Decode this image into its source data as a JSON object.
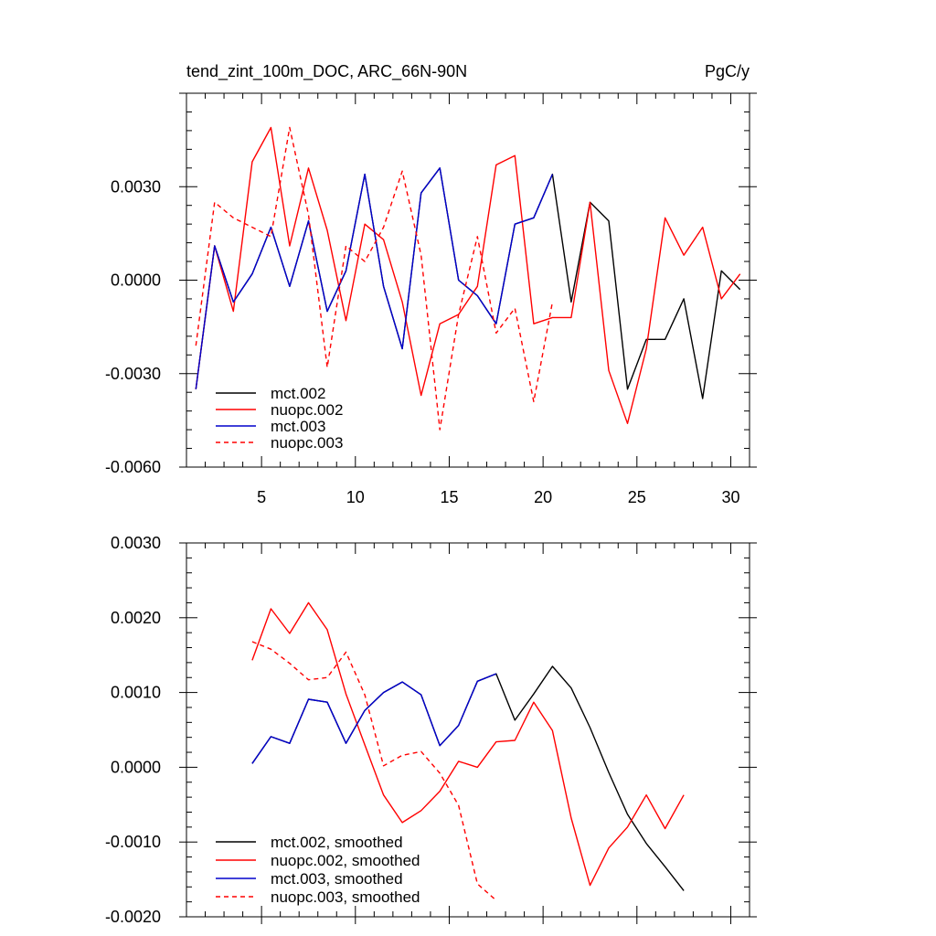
{
  "title_left": "tend_zint_100m_DOC, ARC_66N-90N",
  "title_right": "PgC/y",
  "chart_data": [
    {
      "type": "line",
      "title": "tend_zint_100m_DOC, ARC_66N-90N",
      "units": "PgC/y",
      "xlim": [
        1,
        31
      ],
      "ylim": [
        -0.006,
        0.006
      ],
      "x_ticks": [
        5,
        10,
        15,
        20,
        25,
        30
      ],
      "x_tick_labels": [
        "5",
        "10",
        "15",
        "20",
        "25",
        "30"
      ],
      "y_ticks": [
        -0.006,
        -0.003,
        0.0,
        0.003
      ],
      "y_tick_labels": [
        "-0.0060",
        "-0.0030",
        "0.0000",
        "0.0030"
      ],
      "legend_position": "bottom-left",
      "series": [
        {
          "name": "mct.002",
          "color": "#000000",
          "dash": "solid",
          "x": [
            1.5,
            2.5,
            3.5,
            4.5,
            5.5,
            6.5,
            7.5,
            8.5,
            9.5,
            10.5,
            11.5,
            12.5,
            13.5,
            14.5,
            15.5,
            16.5,
            17.5,
            18.5,
            19.5,
            20.5,
            21.5,
            22.5,
            23.5,
            24.5,
            25.5,
            26.5,
            27.5,
            28.5,
            29.5,
            30.5
          ],
          "values": [
            -0.0035,
            0.0011,
            -0.0007,
            0.0002,
            0.0017,
            -0.0002,
            0.0019,
            -0.001,
            0.0003,
            0.0034,
            -0.0002,
            -0.0022,
            0.0028,
            0.0036,
            0.0,
            -0.0005,
            -0.0014,
            0.0018,
            0.002,
            0.0034,
            -0.0007,
            0.0025,
            0.0019,
            -0.0035,
            -0.0019,
            -0.0019,
            -0.0006,
            -0.0038,
            0.0003,
            -0.0003
          ]
        },
        {
          "name": "nuopc.002",
          "color": "#ff0000",
          "dash": "solid",
          "x": [
            1.5,
            2.5,
            3.5,
            4.5,
            5.5,
            6.5,
            7.5,
            8.5,
            9.5,
            10.5,
            11.5,
            12.5,
            13.5,
            14.5,
            15.5,
            16.5,
            17.5,
            18.5,
            19.5,
            20.5,
            21.5,
            22.5,
            23.5,
            24.5,
            25.5,
            26.5,
            27.5,
            28.5,
            29.5,
            30.5
          ],
          "values": [
            -0.0035,
            0.0011,
            -0.001,
            0.0038,
            0.0049,
            0.0011,
            0.0036,
            0.0016,
            -0.0013,
            0.0018,
            0.0013,
            -0.0007,
            -0.0037,
            -0.0014,
            -0.0011,
            -0.0002,
            0.0037,
            0.004,
            -0.0014,
            -0.0012,
            -0.0012,
            0.0025,
            -0.0029,
            -0.0046,
            -0.0022,
            0.002,
            0.0008,
            0.0017,
            -0.0006,
            0.0002
          ]
        },
        {
          "name": "mct.003",
          "color": "#0000cc",
          "dash": "solid",
          "x": [
            1.5,
            2.5,
            3.5,
            4.5,
            5.5,
            6.5,
            7.5,
            8.5,
            9.5,
            10.5,
            11.5,
            12.5,
            13.5,
            14.5,
            15.5,
            16.5,
            17.5,
            18.5,
            19.5,
            20.5
          ],
          "values": [
            -0.0035,
            0.0011,
            -0.0007,
            0.0002,
            0.0017,
            -0.0002,
            0.0019,
            -0.001,
            0.0003,
            0.0034,
            -0.0002,
            -0.0022,
            0.0028,
            0.0036,
            0.0,
            -0.0005,
            -0.0014,
            0.0018,
            0.002,
            0.0034
          ]
        },
        {
          "name": "nuopc.003",
          "color": "#ff0000",
          "dash": "dashed",
          "x": [
            1.5,
            2.5,
            3.5,
            4.5,
            5.5,
            6.5,
            7.5,
            8.5,
            9.5,
            10.5,
            11.5,
            12.5,
            13.5,
            14.5,
            15.5,
            16.5,
            17.5,
            18.5,
            19.5,
            20.5
          ],
          "values": [
            -0.0021,
            0.0025,
            0.002,
            0.0017,
            0.0014,
            0.0049,
            0.0021,
            -0.0028,
            0.0011,
            0.0006,
            0.0017,
            0.0035,
            0.0008,
            -0.0048,
            -0.0011,
            0.0014,
            -0.0017,
            -0.0009,
            -0.0039,
            -0.0007
          ]
        }
      ]
    },
    {
      "type": "line",
      "xlim": [
        1,
        31
      ],
      "ylim": [
        -0.002,
        0.003
      ],
      "y_ticks": [
        -0.002,
        -0.001,
        0.0,
        0.001,
        0.002,
        0.003
      ],
      "y_tick_labels": [
        "-0.0020",
        "-0.0010",
        "0.0000",
        "0.0010",
        "0.0020",
        "0.0030"
      ],
      "legend_position": "bottom-left",
      "series": [
        {
          "name": "mct.002, smoothed",
          "color": "#000000",
          "dash": "solid",
          "x": [
            4.5,
            5.5,
            6.5,
            7.5,
            8.5,
            9.5,
            10.5,
            11.5,
            12.5,
            13.5,
            14.5,
            15.5,
            16.5,
            17.5,
            18.5,
            19.5,
            20.5,
            21.5,
            22.5,
            23.5,
            24.5,
            25.5,
            26.5,
            27.5
          ],
          "values": [
            5e-05,
            0.00041,
            0.00032,
            0.00091,
            0.00087,
            0.00032,
            0.00076,
            0.001,
            0.00114,
            0.00097,
            0.00029,
            0.00056,
            0.00115,
            0.00125,
            0.00063,
            0.00098,
            0.00135,
            0.00106,
            0.00053,
            -7e-05,
            -0.00063,
            -0.00102,
            -0.00133,
            -0.00165
          ]
        },
        {
          "name": "nuopc.002, smoothed",
          "color": "#ff0000",
          "dash": "solid",
          "x": [
            4.5,
            5.5,
            6.5,
            7.5,
            8.5,
            9.5,
            10.5,
            11.5,
            12.5,
            13.5,
            14.5,
            15.5,
            16.5,
            17.5,
            18.5,
            19.5,
            20.5,
            21.5,
            22.5,
            23.5,
            24.5,
            25.5,
            26.5,
            27.5
          ],
          "values": [
            0.00143,
            0.00212,
            0.00179,
            0.0022,
            0.00184,
            0.00098,
            0.0003,
            -0.00037,
            -0.00074,
            -0.00058,
            -0.00032,
            8e-05,
            0.0,
            0.00034,
            0.00036,
            0.00087,
            0.00049,
            -0.00068,
            -0.00158,
            -0.00108,
            -0.0008,
            -0.00037,
            -0.00082,
            -0.00037
          ]
        },
        {
          "name": "mct.003, smoothed",
          "color": "#0000cc",
          "dash": "solid",
          "x": [
            4.5,
            5.5,
            6.5,
            7.5,
            8.5,
            9.5,
            10.5,
            11.5,
            12.5,
            13.5,
            14.5,
            15.5,
            16.5,
            17.5
          ],
          "values": [
            5e-05,
            0.00041,
            0.00032,
            0.00091,
            0.00087,
            0.00032,
            0.00076,
            0.001,
            0.00114,
            0.00097,
            0.00029,
            0.00056,
            0.00115,
            0.00125
          ]
        },
        {
          "name": "nuopc.003, smoothed",
          "color": "#ff0000",
          "dash": "dashed",
          "x": [
            4.5,
            5.5,
            6.5,
            7.5,
            8.5,
            9.5,
            10.5,
            11.5,
            12.5,
            13.5,
            14.5,
            15.5,
            16.5,
            17.5
          ],
          "values": [
            0.00168,
            0.00158,
            0.00139,
            0.00117,
            0.0012,
            0.00154,
            0.00097,
            2e-05,
            0.00016,
            0.00021,
            -8e-05,
            -0.00051,
            -0.00156,
            -0.00178
          ]
        }
      ]
    }
  ]
}
